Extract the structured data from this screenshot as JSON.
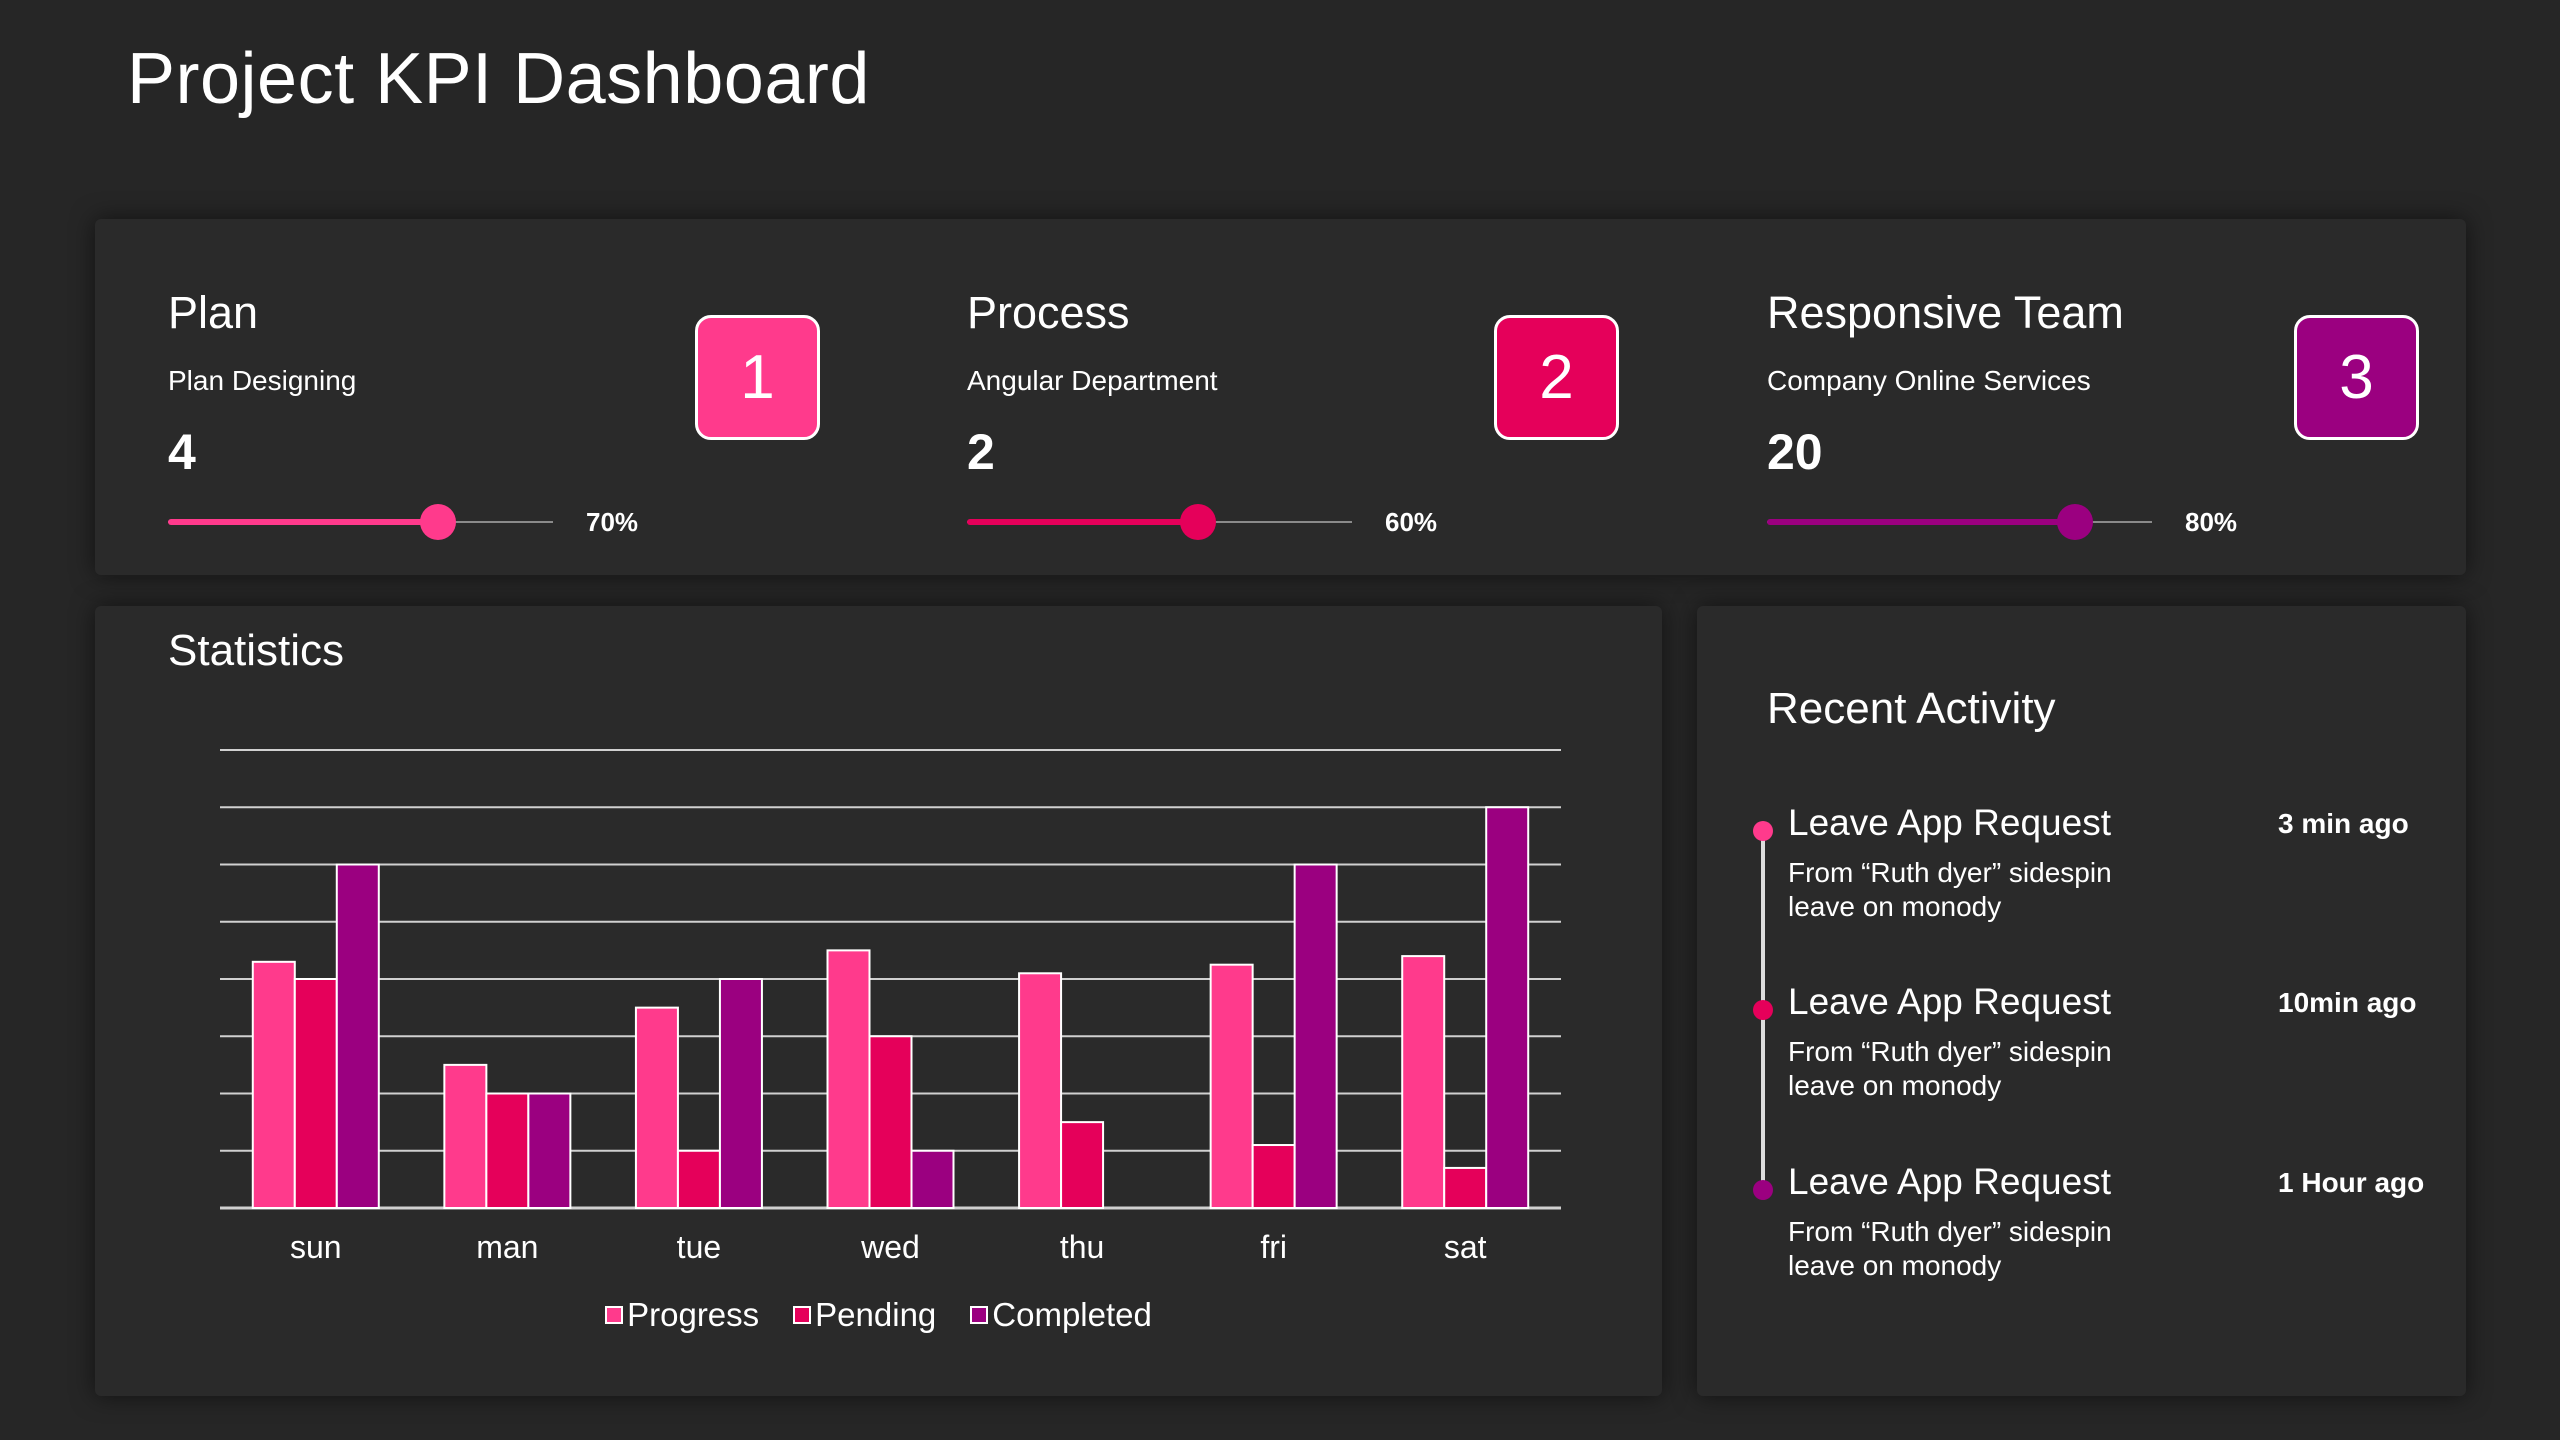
{
  "title": "Project KPI Dashboard",
  "kpis": [
    {
      "title": "Plan",
      "subtitle": "Plan Designing",
      "value": "4",
      "percent_label": "70%",
      "percent": 70,
      "badge": "1",
      "color": "#ff3a8c"
    },
    {
      "title": "Process",
      "subtitle": "Angular Department",
      "value": "2",
      "percent_label": "60%",
      "percent": 60,
      "badge": "2",
      "color": "#e5005a"
    },
    {
      "title": "Responsive Team",
      "subtitle": "Company Online Services",
      "value": "20",
      "percent_label": "80%",
      "percent": 80,
      "badge": "3",
      "color": "#9b0080"
    }
  ],
  "statistics": {
    "title": "Statistics"
  },
  "chart_data": {
    "type": "bar",
    "categories": [
      "sun",
      "man",
      "tue",
      "wed",
      "thu",
      "fri",
      "sat"
    ],
    "series": [
      {
        "name": "Progress",
        "color": "#ff3a8c",
        "values": [
          4.3,
          2.5,
          3.5,
          4.5,
          4.1,
          4.25,
          4.4
        ]
      },
      {
        "name": "Pending",
        "color": "#e5005a",
        "values": [
          4,
          2,
          1,
          3,
          1.5,
          1.1,
          0.7
        ]
      },
      {
        "name": "Completed",
        "color": "#9b0080",
        "values": [
          6,
          2,
          4,
          1,
          0,
          6,
          7
        ]
      }
    ],
    "ylim": [
      0,
      8
    ],
    "grid": true,
    "legend": "bottom"
  },
  "activity": {
    "title": "Recent Activity",
    "items": [
      {
        "title": "Leave App Request",
        "desc1": "From “Ruth dyer” sidespin",
        "desc2": "leave on monody",
        "time": "3 min ago",
        "color": "#ff3a8c"
      },
      {
        "title": "Leave App Request",
        "desc1": "From “Ruth dyer” sidespin",
        "desc2": "leave on monody",
        "time": "10min ago",
        "color": "#e5005a"
      },
      {
        "title": "Leave App Request",
        "desc1": "From “Ruth dyer” sidespin",
        "desc2": "leave on monody",
        "time": "1 Hour ago",
        "color": "#9b0080"
      }
    ]
  }
}
